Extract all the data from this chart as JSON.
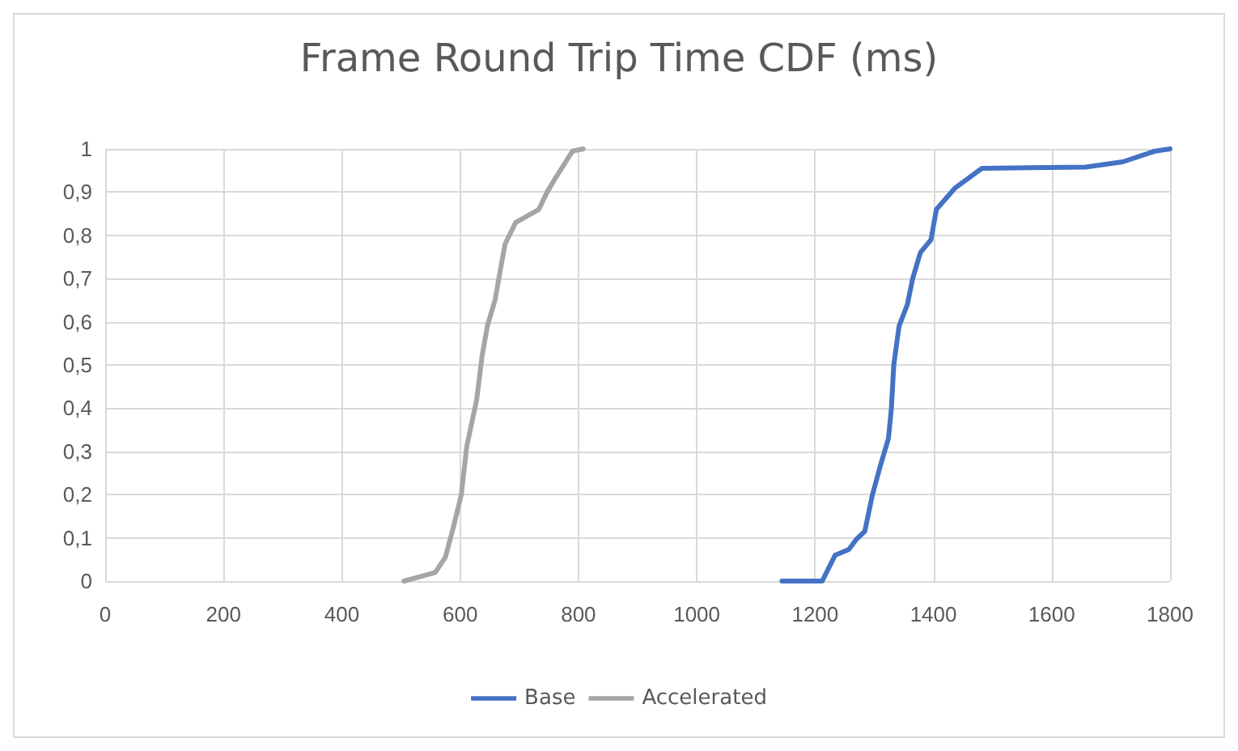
{
  "chart_data": {
    "type": "line",
    "title": "Frame Round Trip Time CDF (ms)",
    "xlim": [
      0,
      1800
    ],
    "xticks": [
      0,
      200,
      400,
      600,
      800,
      1000,
      1200,
      1400,
      1600,
      1800
    ],
    "ylim": [
      0,
      1
    ],
    "yticks": [
      0,
      {
        "value": 0.1,
        "label": "0,1"
      },
      {
        "value": 0.2,
        "label": "0,2"
      },
      {
        "value": 0.3,
        "label": "0,3"
      },
      {
        "value": 0.4,
        "label": "0,4"
      },
      {
        "value": 0.5,
        "label": "0,5"
      },
      {
        "value": 0.6,
        "label": "0,6"
      },
      {
        "value": 0.7,
        "label": "0,7"
      },
      {
        "value": 0.8,
        "label": "0,8"
      },
      {
        "value": 0.9,
        "label": "0,9"
      },
      1
    ],
    "grid": true,
    "legend": "bottom",
    "marker": "none",
    "line_style": "solid",
    "series": [
      {
        "name": "Base",
        "color": "#4472c4",
        "x": [
          1144,
          1212,
          1234,
          1257,
          1270,
          1284,
          1297,
          1311,
          1324,
          1329,
          1333,
          1342,
          1356,
          1365,
          1378,
          1396,
          1405,
          1437,
          1482,
          1657,
          1720,
          1775,
          1800
        ],
        "values": [
          0,
          0,
          0.06,
          0.073,
          0.097,
          0.115,
          0.2,
          0.27,
          0.33,
          0.4,
          0.5,
          0.59,
          0.64,
          0.7,
          0.76,
          0.79,
          0.86,
          0.91,
          0.955,
          0.958,
          0.97,
          0.995,
          1
        ]
      },
      {
        "name": "Accelerated",
        "color": "#a5a5a5",
        "x": [
          505,
          558,
          575,
          589,
          602,
          611,
          628,
          637,
          646,
          659,
          668,
          676,
          694,
          733,
          747,
          760,
          790,
          808
        ],
        "values": [
          0,
          0.02,
          0.055,
          0.127,
          0.2,
          0.31,
          0.42,
          0.52,
          0.59,
          0.65,
          0.72,
          0.78,
          0.83,
          0.86,
          0.9,
          0.93,
          0.995,
          1
        ]
      }
    ]
  }
}
